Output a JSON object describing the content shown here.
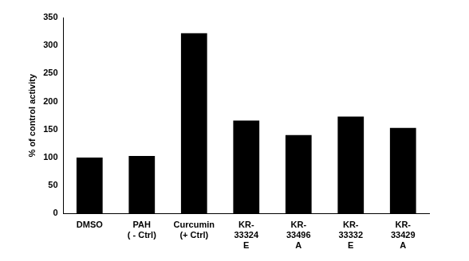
{
  "chart_data": {
    "type": "bar",
    "y_label": "% of control activity",
    "categories": [
      [
        "DMSO"
      ],
      [
        "PAH",
        "( - Ctrl)"
      ],
      [
        "Curcumin",
        "(+ Ctrl)"
      ],
      [
        "KR-",
        "33324",
        "E"
      ],
      [
        "KR-",
        "33496",
        "A"
      ],
      [
        "KR-",
        "33332",
        "E"
      ],
      [
        "KR-",
        "33429",
        "A"
      ]
    ],
    "values": [
      100,
      103,
      322,
      166,
      140,
      173,
      153
    ],
    "color": "#000000",
    "ylim": [
      0,
      350
    ],
    "yticks": [
      0,
      50,
      100,
      150,
      200,
      250,
      300,
      350
    ],
    "grid": false
  }
}
